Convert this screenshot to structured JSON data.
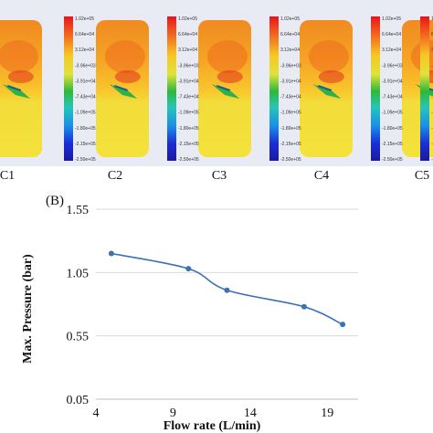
{
  "panel_a": {
    "contour_labels": [
      "C1",
      "C2",
      "C3",
      "C4",
      "C5"
    ],
    "colorbar_ticks": [
      "1.02e+05",
      "6.64e+04",
      "3.12e+04",
      "-3.96e+03",
      "-3.91e+04",
      "-7.43e+04",
      "-1.09e+05",
      "-1.80e+05",
      "-2.15e+05",
      "-2.50e+05"
    ]
  },
  "chart_data": {
    "type": "line",
    "panel_label": "(B)",
    "xlabel": "Flow rate (L/min)",
    "ylabel": "Max. Pressure (bar)",
    "xlim": [
      4,
      21
    ],
    "ylim": [
      0.05,
      1.55
    ],
    "x_ticks": [
      "4",
      "9",
      "14",
      "19"
    ],
    "y_ticks": [
      "0.05",
      "0.55",
      "1.05",
      "1.55"
    ],
    "grid": "horizontal",
    "series": [
      {
        "x": [
          5,
          10,
          12.5,
          17.5,
          20
        ],
        "y": [
          1.2,
          1.08,
          0.91,
          0.78,
          0.64
        ],
        "color": "#3c72b4"
      }
    ]
  }
}
